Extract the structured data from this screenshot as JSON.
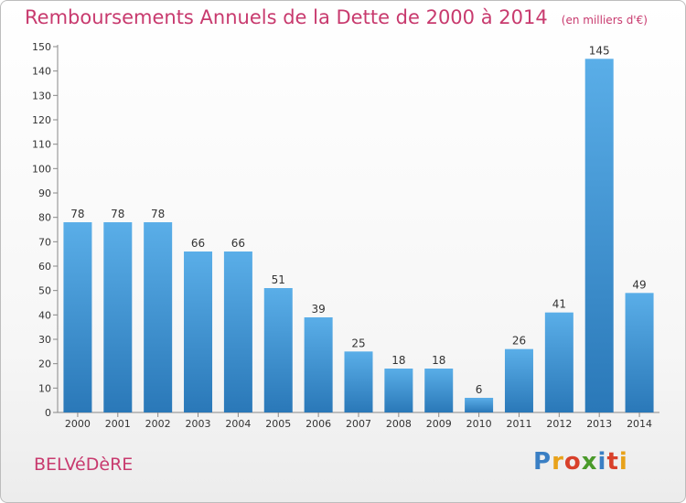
{
  "header": {
    "title": "Remboursements Annuels de la Dette de 2000 à 2014",
    "subtitle": "(en milliers d'€)"
  },
  "footer": {
    "commune": "BELVéDèRE",
    "logo_text": "Proxiti"
  },
  "colors": {
    "title": "#c83a6e",
    "bar_top": "#5aaee8",
    "bar_bottom": "#2a78b8"
  },
  "chart_data": {
    "type": "bar",
    "categories": [
      "2000",
      "2001",
      "2002",
      "2003",
      "2004",
      "2005",
      "2006",
      "2007",
      "2008",
      "2009",
      "2010",
      "2011",
      "2012",
      "2013",
      "2014"
    ],
    "values": [
      78,
      78,
      78,
      66,
      66,
      51,
      39,
      25,
      18,
      18,
      6,
      26,
      41,
      145,
      49
    ],
    "ylim": [
      0,
      150
    ],
    "yticks": [
      0,
      10,
      20,
      30,
      40,
      50,
      60,
      70,
      80,
      90,
      100,
      110,
      120,
      130,
      140,
      150
    ],
    "grid": false,
    "data_labels": true
  }
}
